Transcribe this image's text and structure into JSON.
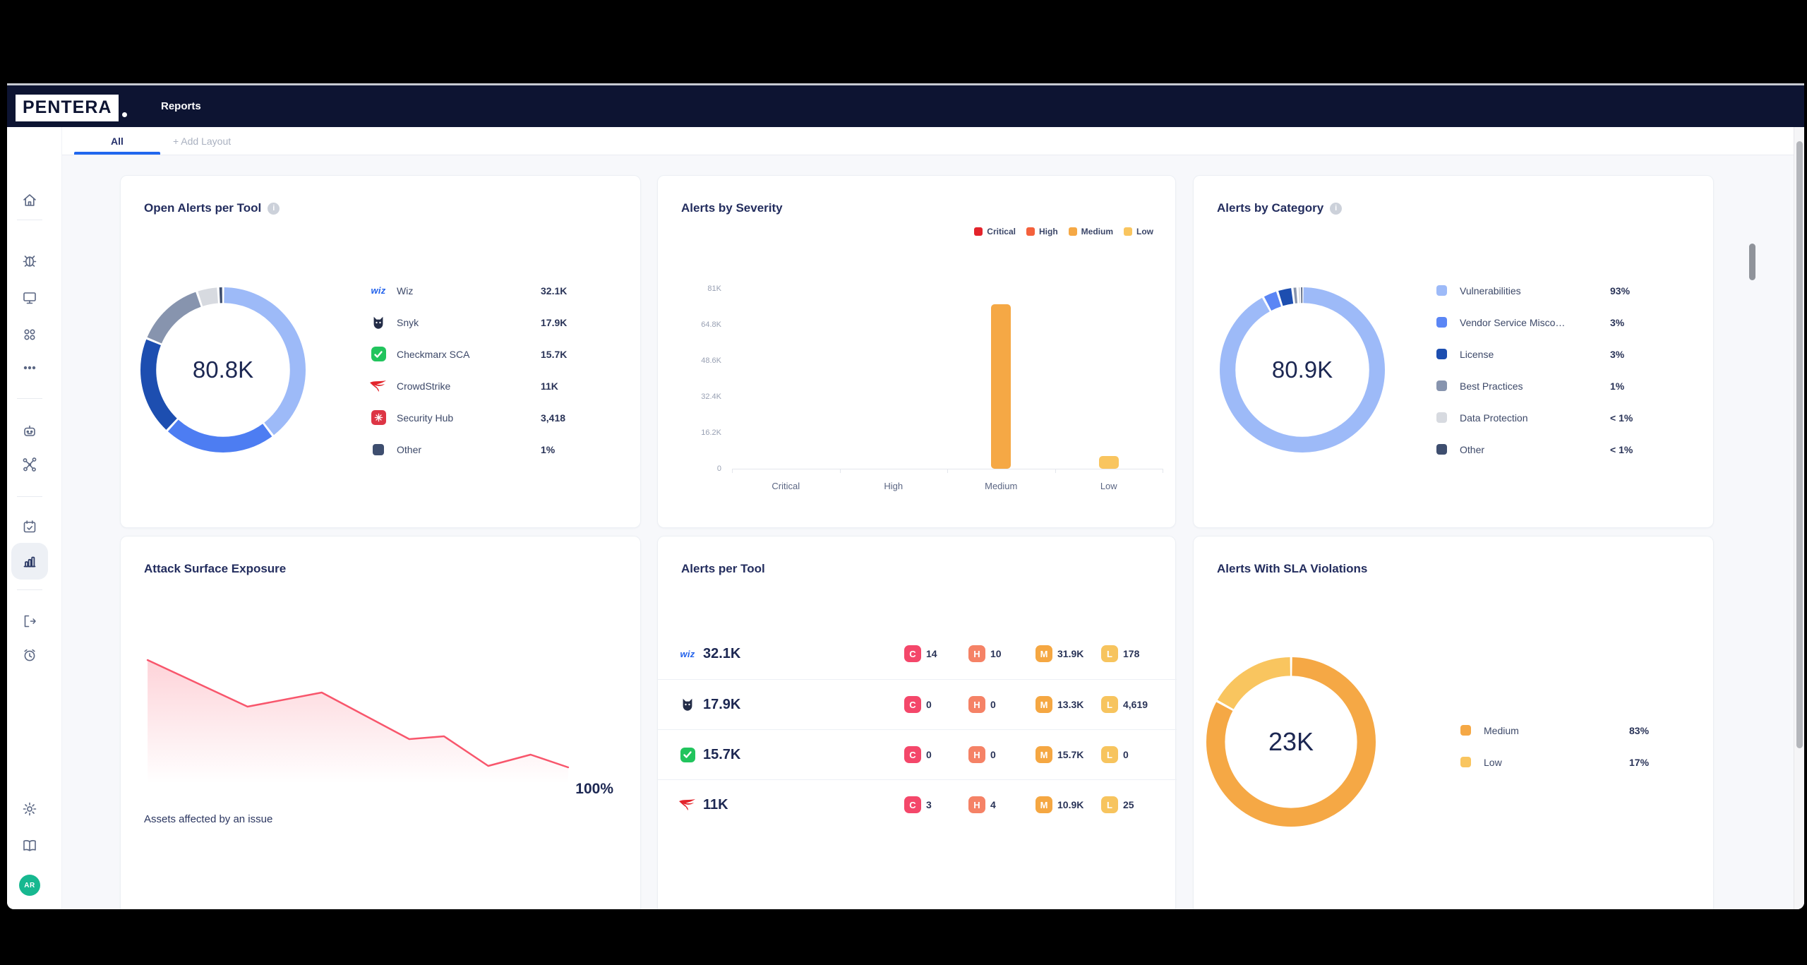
{
  "header": {
    "brand": "PENTERA",
    "page_title": "Reports"
  },
  "tabs": {
    "active": "All",
    "add_layout": "+ Add Layout"
  },
  "sidebar": {
    "avatar_initials": "AR",
    "icon_names": [
      "home-icon",
      "bug-icon",
      "monitor-icon",
      "apps-grid-icon",
      "more-dots-icon",
      "bot-icon",
      "attack-path-icon",
      "calendar-check-icon",
      "bar-chart-icon",
      "logout-icon",
      "alarm-clock-icon",
      "gear-icon",
      "book-icon"
    ]
  },
  "cards": {
    "open_alerts_per_tool": {
      "title": "Open Alerts per Tool",
      "total": "80.8K",
      "chart_type": "donut",
      "items": [
        {
          "label": "Wiz",
          "value": "32.1K",
          "pct": 39.7,
          "color": "#9DBAF8",
          "icon": "wiz"
        },
        {
          "label": "Snyk",
          "value": "17.9K",
          "pct": 22.2,
          "color": "#4D7DF2",
          "icon": "snyk"
        },
        {
          "label": "Checkmarx SCA",
          "value": "15.7K",
          "pct": 19.4,
          "color": "#1D4EB0",
          "icon": "checkmarx"
        },
        {
          "label": "CrowdStrike",
          "value": "11K",
          "pct": 13.6,
          "color": "#8794AE",
          "icon": "crowdstrike"
        },
        {
          "label": "Security Hub",
          "value": "3,418",
          "pct": 4.2,
          "color": "#D7DAE0",
          "icon": "securityhub"
        },
        {
          "label": "Other",
          "value": "1%",
          "pct": 1.0,
          "color": "#3E4E6F",
          "icon": "other"
        }
      ]
    },
    "alerts_by_severity": {
      "title": "Alerts by Severity",
      "chart_type": "bar",
      "categories": [
        "Critical",
        "High",
        "Medium",
        "Low"
      ],
      "values": [
        0,
        0,
        74000,
        5700
      ],
      "bar_colors": [
        "#E3242B",
        "#F4613C",
        "#F5A845",
        "#F9C55F"
      ],
      "legend": [
        {
          "label": "Critical",
          "color": "#E3242B"
        },
        {
          "label": "High",
          "color": "#F4613C"
        },
        {
          "label": "Medium",
          "color": "#F5A845"
        },
        {
          "label": "Low",
          "color": "#F9C55F"
        }
      ],
      "y_ticks": [
        "0",
        "16.2K",
        "32.4K",
        "48.6K",
        "64.8K",
        "81K"
      ],
      "y_max": 81000
    },
    "alerts_by_category": {
      "title": "Alerts by Category",
      "total": "80.9K",
      "chart_type": "donut",
      "items": [
        {
          "label": "Vulnerabilities",
          "value": "93%",
          "pct": 93,
          "color": "#9DBAF8"
        },
        {
          "label": "Vendor Service Misco…",
          "value": "3%",
          "pct": 3,
          "color": "#5B86F5"
        },
        {
          "label": "License",
          "value": "3%",
          "pct": 3,
          "color": "#1D4EB0"
        },
        {
          "label": "Best Practices",
          "value": "1%",
          "pct": 1,
          "color": "#8794AE"
        },
        {
          "label": "Data Protection",
          "value": "< 1%",
          "pct": 0.5,
          "color": "#D7DAE0"
        },
        {
          "label": "Other",
          "value": "< 1%",
          "pct": 0.5,
          "color": "#3E4E6F"
        }
      ]
    },
    "attack_surface_exposure": {
      "title": "Attack Surface Exposure",
      "chart_type": "area",
      "end_label": "100%",
      "caption": "Assets affected by an issue",
      "line_color": "#F8566C",
      "points": [
        [
          0.018,
          0.125
        ],
        [
          0.228,
          0.455
        ],
        [
          0.384,
          0.355
        ],
        [
          0.568,
          0.685
        ],
        [
          0.641,
          0.665
        ],
        [
          0.734,
          0.875
        ],
        [
          0.823,
          0.795
        ],
        [
          0.902,
          0.885
        ]
      ]
    },
    "alerts_per_tool": {
      "title": "Alerts per Tool",
      "severities": [
        {
          "letter": "C",
          "color": "#F4476A"
        },
        {
          "letter": "H",
          "color": "#F58266"
        },
        {
          "letter": "M",
          "color": "#F5A742"
        },
        {
          "letter": "L",
          "color": "#F7C45E"
        }
      ],
      "rows": [
        {
          "tool": "Wiz",
          "icon": "wiz",
          "total": "32.1K",
          "counts": [
            "14",
            "10",
            "31.9K",
            "178"
          ]
        },
        {
          "tool": "Snyk",
          "icon": "snyk",
          "total": "17.9K",
          "counts": [
            "0",
            "0",
            "13.3K",
            "4,619"
          ]
        },
        {
          "tool": "Checkmarx SCA",
          "icon": "checkmarx",
          "total": "15.7K",
          "counts": [
            "0",
            "0",
            "15.7K",
            "0"
          ]
        },
        {
          "tool": "CrowdStrike",
          "icon": "crowdstrike",
          "total": "11K",
          "counts": [
            "3",
            "4",
            "10.9K",
            "25"
          ]
        }
      ]
    },
    "alerts_with_sla_violations": {
      "title": "Alerts With SLA Violations",
      "total": "23K",
      "chart_type": "donut",
      "items": [
        {
          "label": "Medium",
          "value": "83%",
          "pct": 83,
          "color": "#F5A845"
        },
        {
          "label": "Low",
          "value": "17%",
          "pct": 17,
          "color": "#F9C55F"
        }
      ]
    }
  }
}
